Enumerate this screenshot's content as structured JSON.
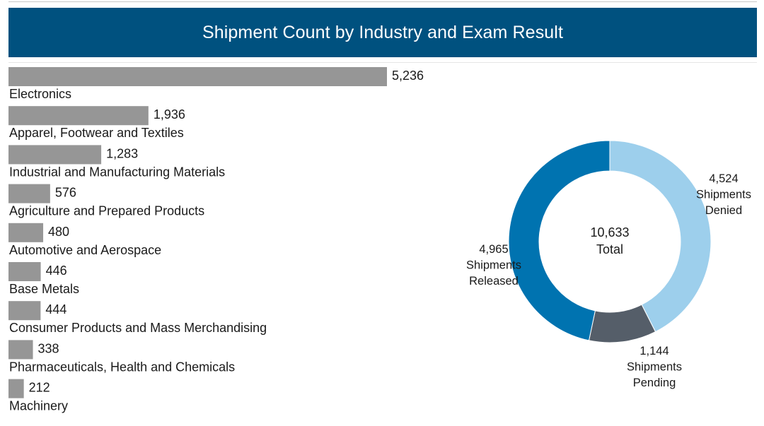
{
  "chart_data": [
    {
      "type": "bar",
      "orientation": "horizontal",
      "title": "Shipment Count by Industry and Exam Result",
      "categories": [
        "Electronics",
        "Apparel, Footwear and Textiles",
        "Industrial and Manufacturing Materials",
        "Agriculture and Prepared Products",
        "Automotive and Aerospace",
        "Base Metals",
        "Consumer Products and Mass Merchandising",
        "Pharmaceuticals, Health and Chemicals",
        "Machinery"
      ],
      "values": [
        5236,
        1936,
        1283,
        576,
        480,
        446,
        444,
        338,
        212
      ],
      "value_labels": [
        "5,236",
        "1,936",
        "1,283",
        "576",
        "480",
        "446",
        "444",
        "338",
        "212"
      ],
      "color": "#969696"
    },
    {
      "type": "pie",
      "style": "donut",
      "center_value": "10,633",
      "center_label": "Total",
      "total": 10633,
      "slices": [
        {
          "value": 4524,
          "value_label": "4,524",
          "line1": "Shipments",
          "line2": "Denied",
          "color": "#9dcfec"
        },
        {
          "value": 1144,
          "value_label": "1,144",
          "line1": "Shipments",
          "line2": "Pending",
          "color": "#555e69"
        },
        {
          "value": 4965,
          "value_label": "4,965",
          "line1": "Shipments",
          "line2": "Released",
          "color": "#0073b0"
        }
      ]
    }
  ]
}
